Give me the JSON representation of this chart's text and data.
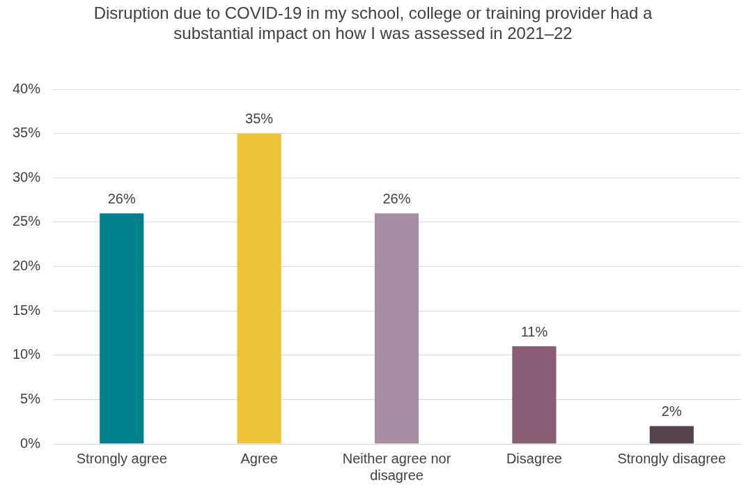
{
  "chart_data": {
    "type": "bar",
    "title": "Disruption due to COVID-19 in my school, college or training provider had a substantial impact on how I was assessed in 2021–22",
    "categories": [
      "Strongly agree",
      "Agree",
      "Neither agree nor disagree",
      "Disagree",
      "Strongly disagree"
    ],
    "values": [
      26,
      35,
      26,
      11,
      2
    ],
    "colors": [
      "#00808c",
      "#ecc336",
      "#a78ea5",
      "#8a5d74",
      "#55424f"
    ],
    "value_labels": [
      "26%",
      "35%",
      "26%",
      "11%",
      "2%"
    ],
    "ylim": [
      0,
      40
    ],
    "yticks": [
      {
        "value": 0,
        "label": "0%"
      },
      {
        "value": 5,
        "label": "5%"
      },
      {
        "value": 10,
        "label": "10%"
      },
      {
        "value": 15,
        "label": "15%"
      },
      {
        "value": 20,
        "label": "20%"
      },
      {
        "value": 25,
        "label": "25%"
      },
      {
        "value": 30,
        "label": "30%"
      },
      {
        "value": 35,
        "label": "35%"
      },
      {
        "value": 40,
        "label": "40%"
      }
    ],
    "grid": "y",
    "legend": false
  }
}
